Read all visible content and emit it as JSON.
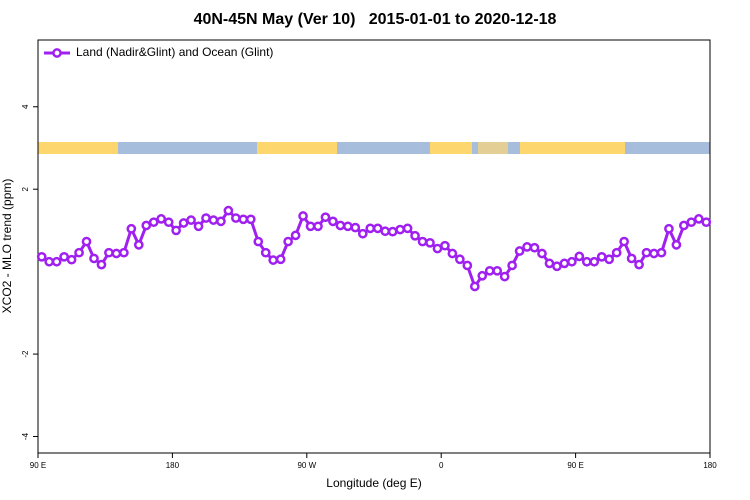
{
  "chart_data": {
    "type": "line",
    "title": "40N-45N May (Ver 10)   2015-01-01 to 2020-12-18",
    "xlabel": "Longitude (deg E)",
    "ylabel": "XCO2 - MLO trend (ppm)",
    "x": [
      92.5,
      97.5,
      102.5,
      107.5,
      112.5,
      117.5,
      122.5,
      127.5,
      132.5,
      137.5,
      142.5,
      147.5,
      152.5,
      157.5,
      162.5,
      167.5,
      172.5,
      177.5,
      182.5,
      187.5,
      192.5,
      197.5,
      202.5,
      207.5,
      212.5,
      217.5,
      222.5,
      227.5,
      232.5,
      237.5,
      242.5,
      247.5,
      252.5,
      257.5,
      262.5,
      267.5,
      272.5,
      277.5,
      282.5,
      287.5,
      292.5,
      297.5,
      302.5,
      307.5,
      312.5,
      317.5,
      322.5,
      327.5,
      332.5,
      337.5,
      342.5,
      347.5,
      352.5,
      357.5,
      362.5,
      367.5,
      372.5,
      377.5,
      382.5,
      387.5,
      392.5,
      397.5,
      402.5,
      407.5,
      412.5,
      417.5,
      422.5,
      427.5,
      432.5,
      437.5,
      442.5,
      447.5,
      452.5,
      457.5,
      462.5,
      467.5,
      472.5,
      477.5,
      482.5,
      487.5,
      492.5,
      497.5,
      502.5,
      507.5,
      512.5,
      517.5,
      522.5,
      527.5,
      532.5,
      537.5
    ],
    "series": [
      {
        "name": "Land (Nadir&Glint) and Ocean (Glint)",
        "color": "#a020f0",
        "values": [
          0.36,
          0.24,
          0.24,
          0.36,
          0.29,
          0.46,
          0.73,
          0.32,
          0.17,
          0.46,
          0.44,
          0.46,
          1.04,
          0.65,
          1.12,
          1.2,
          1.28,
          1.2,
          1.0,
          1.18,
          1.25,
          1.1,
          1.3,
          1.25,
          1.22,
          1.48,
          1.3,
          1.27,
          1.27,
          0.73,
          0.46,
          0.28,
          0.3,
          0.73,
          0.88,
          1.35,
          1.1,
          1.1,
          1.32,
          1.22,
          1.12,
          1.1,
          1.07,
          0.92,
          1.05,
          1.05,
          0.98,
          0.97,
          1.02,
          1.05,
          0.87,
          0.73,
          0.7,
          0.56,
          0.63,
          0.44,
          0.3,
          0.15,
          -0.36,
          -0.1,
          0.02,
          0.02,
          -0.12,
          0.15,
          0.5,
          0.6,
          0.58,
          0.44,
          0.2,
          0.13,
          0.2,
          0.24,
          0.37,
          0.24,
          0.24,
          0.36,
          0.3,
          0.46,
          0.73,
          0.32,
          0.17,
          0.46,
          0.44,
          0.46,
          1.04,
          0.65,
          1.12,
          1.2,
          1.28,
          1.2
        ]
      }
    ],
    "xlim": [
      90,
      540
    ],
    "xticks": [
      {
        "value": 90,
        "label": "90 E"
      },
      {
        "value": 180,
        "label": "180"
      },
      {
        "value": 270,
        "label": "90 W"
      },
      {
        "value": 360,
        "label": "0"
      },
      {
        "value": 450,
        "label": "90 E"
      },
      {
        "value": 540,
        "label": "180"
      }
    ],
    "ylim": [
      -4.4,
      5.62
    ],
    "yticks": [
      -4,
      -2,
      2,
      4
    ],
    "legend": "top-left"
  }
}
